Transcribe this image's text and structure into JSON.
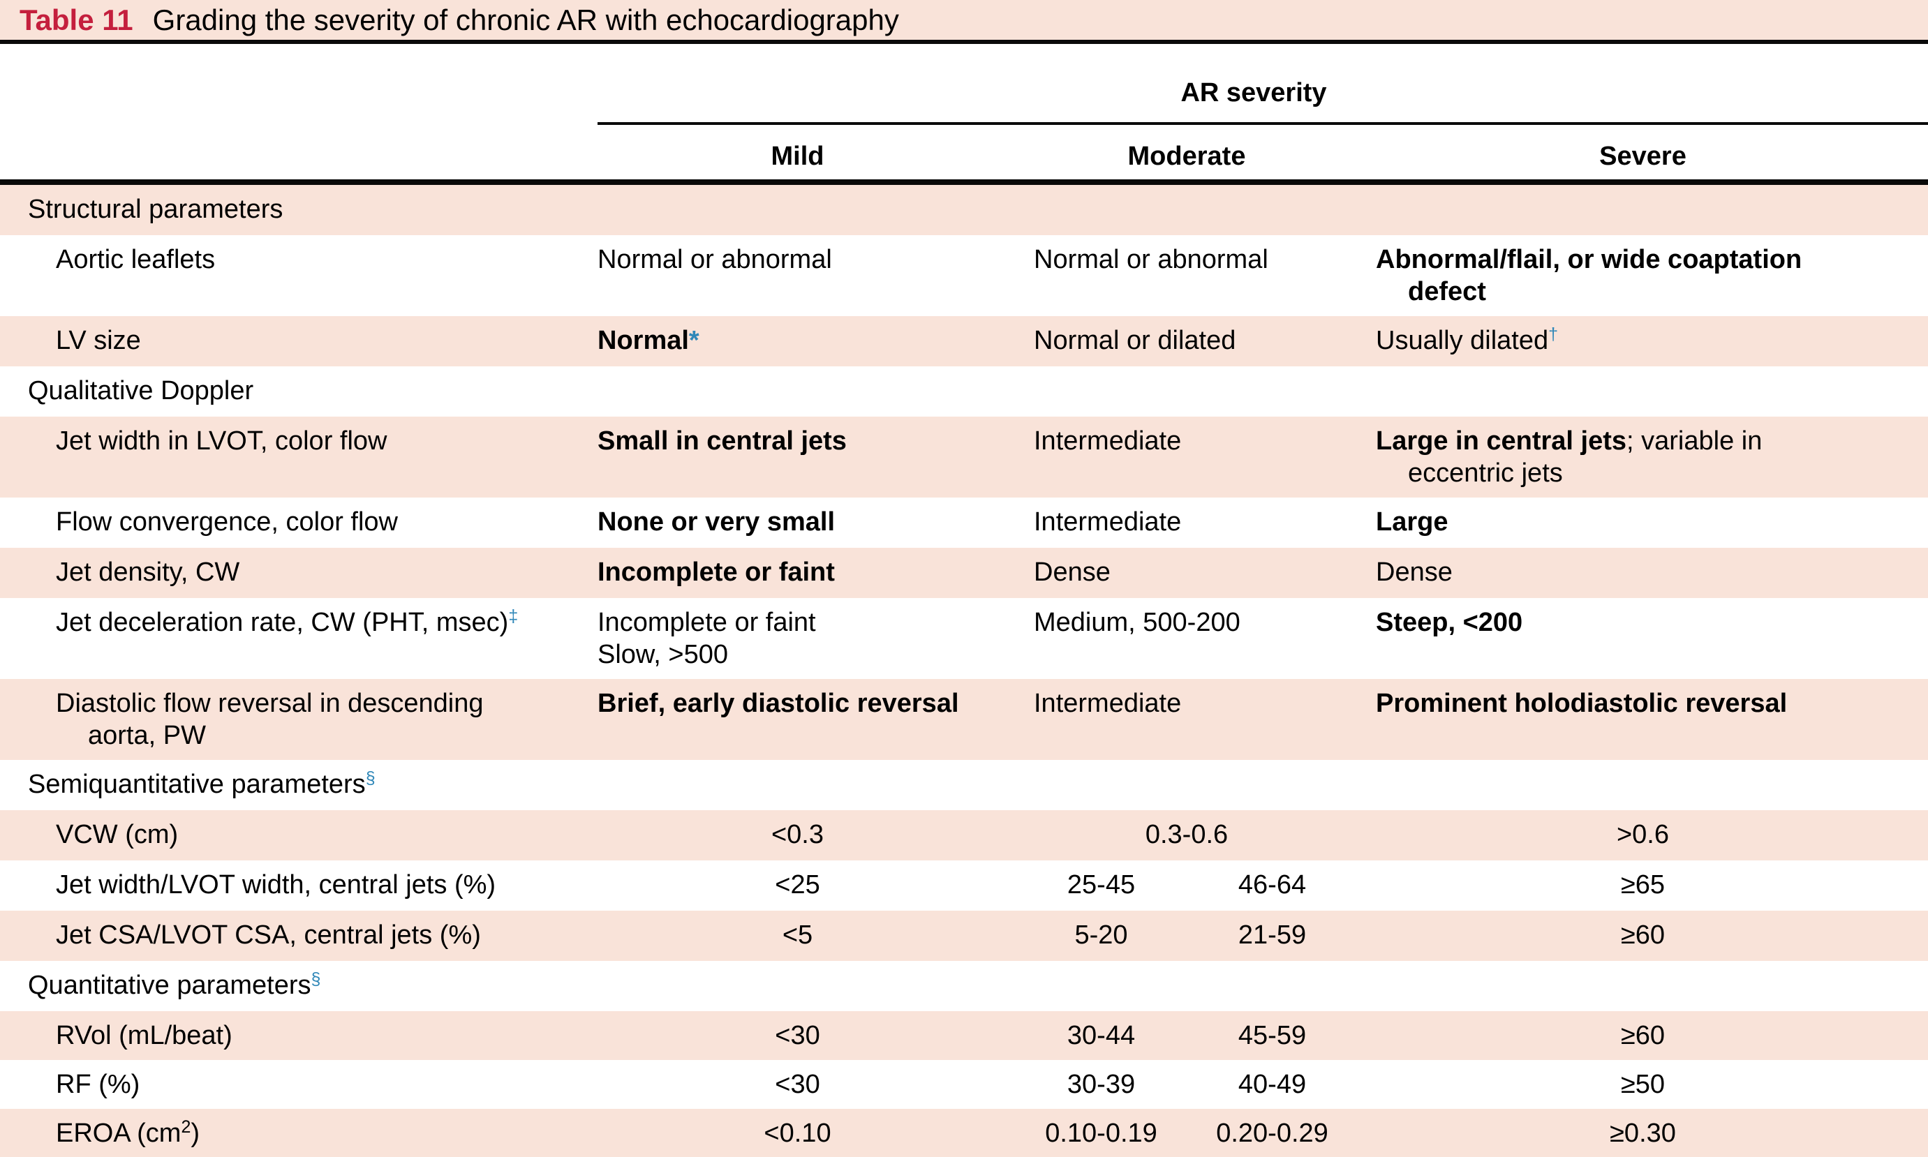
{
  "caption": {
    "label": "Table 11",
    "title": "Grading the severity of chronic AR with echocardiography"
  },
  "header": {
    "group": "AR severity",
    "columns": [
      "Mild",
      "Moderate",
      "Severe"
    ]
  },
  "colors": {
    "accent_red": "#c41f3d",
    "row_pink": "#f9e3d9",
    "marker_blue": "#2f87b8",
    "rule_black": "#0a0a0a"
  },
  "rows": [
    {
      "type": "section",
      "bg": "pink",
      "label": {
        "lines": [
          {
            "seg": [
              {
                "t": "Structural parameters"
              }
            ]
          }
        ]
      }
    },
    {
      "type": "param",
      "bg": "white",
      "tall": true,
      "id": "aortic-leaflets",
      "label": {
        "lines": [
          {
            "seg": [
              {
                "t": "Aortic leaflets"
              }
            ]
          }
        ]
      },
      "cells": {
        "mild": {
          "kind": "text",
          "lines": [
            {
              "seg": [
                {
                  "t": "Normal or abnormal"
                }
              ]
            }
          ]
        },
        "moderate": {
          "kind": "text",
          "lines": [
            {
              "seg": [
                {
                  "t": "Normal or abnormal"
                }
              ]
            }
          ]
        },
        "severe": {
          "kind": "text",
          "lines": [
            {
              "seg": [
                {
                  "t": "Abnormal/flail, or wide coaptation",
                  "b": true
                }
              ]
            },
            {
              "ind": true,
              "seg": [
                {
                  "t": "defect",
                  "b": true
                }
              ]
            }
          ]
        }
      }
    },
    {
      "type": "param",
      "bg": "pink",
      "id": "lv-size",
      "label": {
        "lines": [
          {
            "seg": [
              {
                "t": "LV size"
              }
            ]
          }
        ]
      },
      "cells": {
        "mild": {
          "kind": "text",
          "lines": [
            {
              "seg": [
                {
                  "t": "Normal",
                  "b": true
                },
                {
                  "t": "*",
                  "b": true,
                  "color": "blue"
                }
              ]
            }
          ]
        },
        "moderate": {
          "kind": "text",
          "lines": [
            {
              "seg": [
                {
                  "t": "Normal or dilated"
                }
              ]
            }
          ]
        },
        "severe": {
          "kind": "text",
          "lines": [
            {
              "seg": [
                {
                  "t": "Usually dilated"
                },
                {
                  "t": "†",
                  "sup": true,
                  "color": "blue"
                }
              ]
            }
          ]
        }
      }
    },
    {
      "type": "section",
      "bg": "white",
      "label": {
        "lines": [
          {
            "seg": [
              {
                "t": "Qualitative Doppler"
              }
            ]
          }
        ]
      }
    },
    {
      "type": "param",
      "bg": "pink",
      "tall": true,
      "id": "jet-width-lvot",
      "label": {
        "lines": [
          {
            "seg": [
              {
                "t": "Jet width in LVOT, color flow"
              }
            ]
          }
        ]
      },
      "cells": {
        "mild": {
          "kind": "text",
          "lines": [
            {
              "seg": [
                {
                  "t": "Small in central jets",
                  "b": true
                }
              ]
            }
          ]
        },
        "moderate": {
          "kind": "text",
          "lines": [
            {
              "seg": [
                {
                  "t": "Intermediate"
                }
              ]
            }
          ]
        },
        "severe": {
          "kind": "text",
          "lines": [
            {
              "seg": [
                {
                  "t": "Large in central jets",
                  "b": true
                },
                {
                  "t": "; variable in"
                }
              ]
            },
            {
              "ind": true,
              "seg": [
                {
                  "t": "eccentric jets"
                }
              ]
            }
          ]
        }
      }
    },
    {
      "type": "param",
      "bg": "white",
      "id": "flow-convergence",
      "label": {
        "lines": [
          {
            "seg": [
              {
                "t": "Flow convergence, color flow"
              }
            ]
          }
        ]
      },
      "cells": {
        "mild": {
          "kind": "text",
          "lines": [
            {
              "seg": [
                {
                  "t": "None or very small",
                  "b": true
                }
              ]
            }
          ]
        },
        "moderate": {
          "kind": "text",
          "lines": [
            {
              "seg": [
                {
                  "t": "Intermediate"
                }
              ]
            }
          ]
        },
        "severe": {
          "kind": "text",
          "lines": [
            {
              "seg": [
                {
                  "t": "Large",
                  "b": true
                }
              ]
            }
          ]
        }
      }
    },
    {
      "type": "param",
      "bg": "pink",
      "id": "jet-density",
      "label": {
        "lines": [
          {
            "seg": [
              {
                "t": "Jet density, CW"
              }
            ]
          }
        ]
      },
      "cells": {
        "mild": {
          "kind": "text",
          "lines": [
            {
              "seg": [
                {
                  "t": "Incomplete or faint",
                  "b": true
                }
              ]
            }
          ]
        },
        "moderate": {
          "kind": "text",
          "lines": [
            {
              "seg": [
                {
                  "t": "Dense"
                }
              ]
            }
          ]
        },
        "severe": {
          "kind": "text",
          "lines": [
            {
              "seg": [
                {
                  "t": "Dense"
                }
              ]
            }
          ]
        }
      }
    },
    {
      "type": "param",
      "bg": "white",
      "tall": true,
      "id": "jet-deceleration-rate",
      "label": {
        "lines": [
          {
            "seg": [
              {
                "t": "Jet deceleration rate, CW (PHT, msec)"
              },
              {
                "t": "‡",
                "sup": true,
                "color": "blue"
              }
            ]
          }
        ]
      },
      "cells": {
        "mild": {
          "kind": "text",
          "lines": [
            {
              "seg": [
                {
                  "t": "Incomplete or faint"
                }
              ]
            },
            {
              "seg": [
                {
                  "t": "Slow, >500"
                }
              ]
            }
          ]
        },
        "moderate": {
          "kind": "text",
          "lines": [
            {
              "seg": [
                {
                  "t": "Medium, 500-200"
                }
              ]
            }
          ]
        },
        "severe": {
          "kind": "text",
          "lines": [
            {
              "seg": [
                {
                  "t": "Steep, <200",
                  "b": true
                }
              ]
            }
          ]
        }
      }
    },
    {
      "type": "param",
      "bg": "pink",
      "tall": true,
      "id": "diastolic-flow-reversal",
      "label": {
        "lines": [
          {
            "seg": [
              {
                "t": "Diastolic flow reversal in descending"
              }
            ]
          },
          {
            "ind": true,
            "seg": [
              {
                "t": "aorta, PW"
              }
            ]
          }
        ]
      },
      "cells": {
        "mild": {
          "kind": "text",
          "lines": [
            {
              "seg": [
                {
                  "t": "Brief, early diastolic reversal",
                  "b": true
                }
              ]
            }
          ]
        },
        "moderate": {
          "kind": "text",
          "lines": [
            {
              "seg": [
                {
                  "t": "Intermediate"
                }
              ]
            }
          ]
        },
        "severe": {
          "kind": "text",
          "lines": [
            {
              "seg": [
                {
                  "t": "Prominent holodiastolic reversal",
                  "b": true
                }
              ]
            }
          ]
        }
      }
    },
    {
      "type": "section",
      "bg": "white",
      "label": {
        "lines": [
          {
            "seg": [
              {
                "t": "Semiquantitative parameters"
              },
              {
                "t": "§",
                "sup": true,
                "color": "blue"
              }
            ]
          }
        ]
      }
    },
    {
      "type": "param",
      "bg": "pink",
      "id": "vcw",
      "label": {
        "lines": [
          {
            "seg": [
              {
                "t": "VCW (cm)"
              }
            ]
          }
        ]
      },
      "cells": {
        "mild": {
          "kind": "num",
          "values": [
            "<0.3"
          ]
        },
        "moderate": {
          "kind": "num",
          "values": [
            "0.3-0.6"
          ]
        },
        "severe": {
          "kind": "num",
          "values": [
            ">0.6"
          ]
        }
      }
    },
    {
      "type": "param",
      "bg": "white",
      "id": "jet-width-ratio",
      "label": {
        "lines": [
          {
            "seg": [
              {
                "t": "Jet width/LVOT width, central jets (%)"
              }
            ]
          }
        ]
      },
      "cells": {
        "mild": {
          "kind": "num",
          "values": [
            "<25"
          ]
        },
        "moderate": {
          "kind": "num",
          "values": [
            "25-45",
            "46-64"
          ]
        },
        "severe": {
          "kind": "num",
          "values": [
            "≥65"
          ]
        }
      }
    },
    {
      "type": "param",
      "bg": "pink",
      "id": "jet-csa-ratio",
      "label": {
        "lines": [
          {
            "seg": [
              {
                "t": "Jet CSA/LVOT CSA, central jets (%)"
              }
            ]
          }
        ]
      },
      "cells": {
        "mild": {
          "kind": "num",
          "values": [
            "<5"
          ]
        },
        "moderate": {
          "kind": "num",
          "values": [
            "5-20",
            "21-59"
          ]
        },
        "severe": {
          "kind": "num",
          "values": [
            "≥60"
          ]
        }
      }
    },
    {
      "type": "section",
      "bg": "white",
      "label": {
        "lines": [
          {
            "seg": [
              {
                "t": "Quantitative parameters"
              },
              {
                "t": "§",
                "sup": true,
                "color": "blue"
              }
            ]
          }
        ]
      }
    },
    {
      "type": "param",
      "bg": "pink",
      "id": "rvol",
      "hclass": "h-rvol",
      "label": {
        "lines": [
          {
            "seg": [
              {
                "t": "RVol (mL/beat)"
              }
            ]
          }
        ]
      },
      "cells": {
        "mild": {
          "kind": "num",
          "values": [
            "<30"
          ]
        },
        "moderate": {
          "kind": "num",
          "values": [
            "30-44",
            "45-59"
          ]
        },
        "severe": {
          "kind": "num",
          "values": [
            "≥60"
          ]
        }
      }
    },
    {
      "type": "param",
      "bg": "white",
      "id": "rf",
      "hclass": "h-rf",
      "label": {
        "lines": [
          {
            "seg": [
              {
                "t": "RF (%)"
              }
            ]
          }
        ]
      },
      "cells": {
        "mild": {
          "kind": "num",
          "values": [
            "<30"
          ]
        },
        "moderate": {
          "kind": "num",
          "values": [
            "30-39",
            "40-49"
          ]
        },
        "severe": {
          "kind": "num",
          "values": [
            "≥50"
          ]
        }
      }
    },
    {
      "type": "param",
      "bg": "pink",
      "id": "eroa",
      "last": true,
      "label": {
        "lines": [
          {
            "seg": [
              {
                "t": "EROA (cm"
              },
              {
                "t": "2",
                "sup": true
              },
              {
                "t": ")"
              }
            ]
          }
        ]
      },
      "cells": {
        "mild": {
          "kind": "num",
          "values": [
            "<0.10"
          ]
        },
        "moderate": {
          "kind": "num",
          "values": [
            "0.10-0.19",
            "0.20-0.29"
          ]
        },
        "severe": {
          "kind": "num",
          "values": [
            "≥0.30"
          ]
        }
      }
    }
  ]
}
